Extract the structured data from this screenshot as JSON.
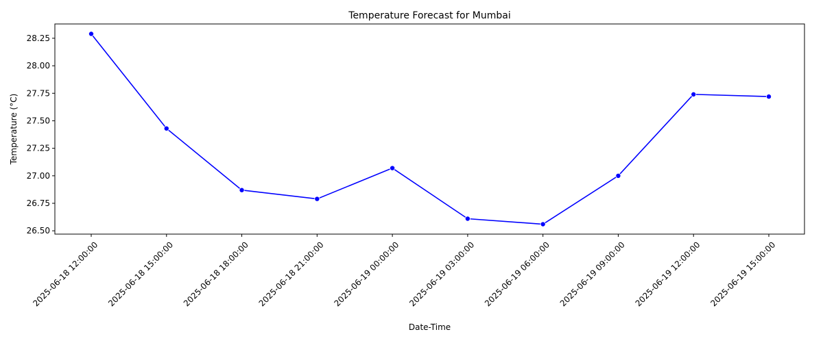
{
  "chart_data": {
    "type": "line",
    "title": "Temperature Forecast for Mumbai",
    "xlabel": "Date-Time",
    "ylabel": "Temperature (°C)",
    "x": [
      "2025-06-18 12:00:00",
      "2025-06-18 15:00:00",
      "2025-06-18 18:00:00",
      "2025-06-18 21:00:00",
      "2025-06-19 00:00:00",
      "2025-06-19 03:00:00",
      "2025-06-19 06:00:00",
      "2025-06-19 09:00:00",
      "2025-06-19 12:00:00",
      "2025-06-19 15:00:00"
    ],
    "series": [
      {
        "values": [
          28.29,
          27.43,
          26.87,
          26.79,
          27.07,
          26.61,
          26.56,
          27.0,
          27.74,
          27.72
        ],
        "color": "#0000ff",
        "marker": "circle"
      }
    ],
    "ylim": [
      26.47,
      28.38
    ],
    "yticks": [
      26.5,
      26.75,
      27.0,
      27.25,
      27.5,
      27.75,
      28.0,
      28.25
    ],
    "ytick_labels": [
      "26.50",
      "26.75",
      "27.00",
      "27.25",
      "27.50",
      "27.75",
      "28.00",
      "28.25"
    ],
    "xtick_rotation_deg": 45,
    "grid": false,
    "legend": false
  }
}
